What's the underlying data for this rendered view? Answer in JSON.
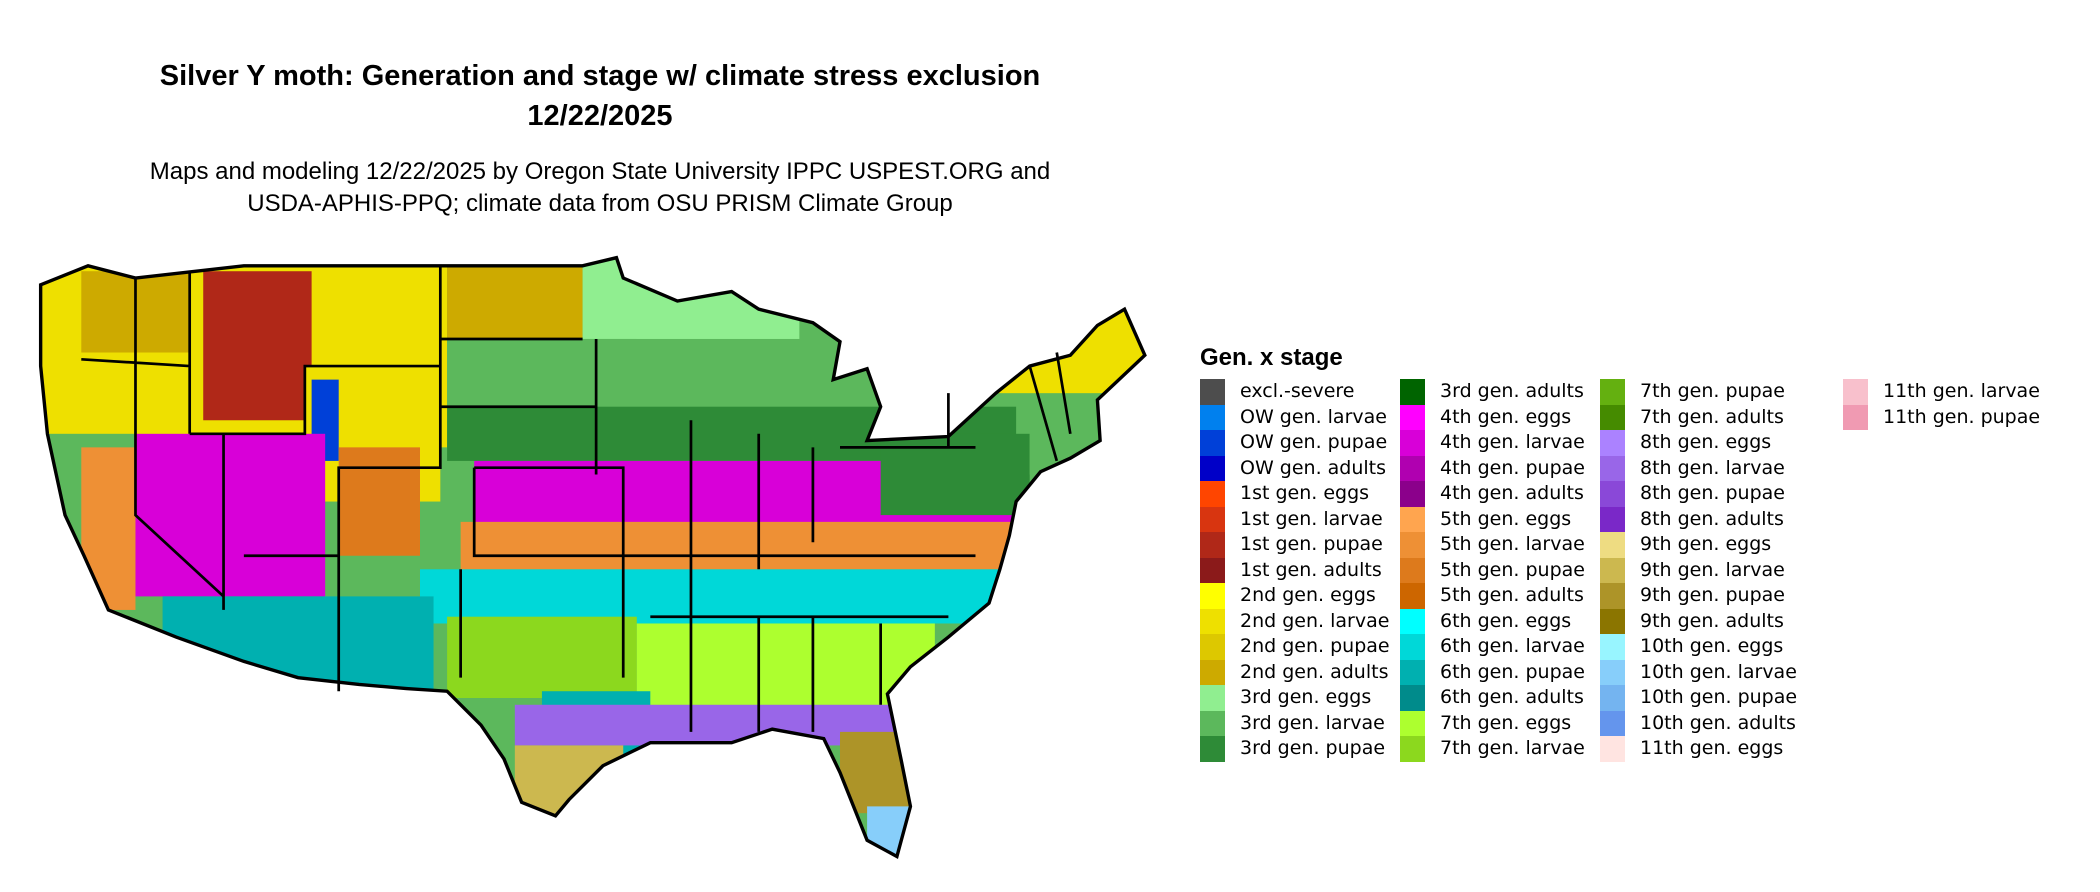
{
  "title": {
    "line1": "Silver Y moth: Generation and stage w/ climate stress exclusion",
    "line2": "12/22/2025"
  },
  "subtitle": {
    "line1": "Maps and modeling 12/22/2025 by Oregon State University IPPC USPEST.ORG and",
    "line2": "USDA-APHIS-PPQ; climate data from OSU PRISM Climate Group"
  },
  "legend": {
    "title": "Gen. x stage",
    "items": [
      {
        "label": "excl.-severe",
        "color": "#4d4d4d"
      },
      {
        "label": "OW gen. larvae",
        "color": "#0080ee"
      },
      {
        "label": "OW gen. pupae",
        "color": "#0040d8"
      },
      {
        "label": "OW gen. adults",
        "color": "#0000c8"
      },
      {
        "label": "1st gen. eggs",
        "color": "#ff4500"
      },
      {
        "label": "1st gen. larvae",
        "color": "#d83510"
      },
      {
        "label": "1st gen. pupae",
        "color": "#b02818"
      },
      {
        "label": "1st gen. adults",
        "color": "#8b1a1a"
      },
      {
        "label": "2nd gen. eggs",
        "color": "#ffff00"
      },
      {
        "label": "2nd gen. larvae",
        "color": "#eee000"
      },
      {
        "label": "2nd gen. pupae",
        "color": "#ddc800"
      },
      {
        "label": "2nd gen. adults",
        "color": "#cdaa00"
      },
      {
        "label": "3rd gen. eggs",
        "color": "#90ee90"
      },
      {
        "label": "3rd gen. larvae",
        "color": "#5cb85c"
      },
      {
        "label": "3rd gen. pupae",
        "color": "#2e8b37"
      },
      {
        "label": "3rd gen. adults",
        "color": "#006400"
      },
      {
        "label": "4th gen. eggs",
        "color": "#ff00ff"
      },
      {
        "label": "4th gen. larvae",
        "color": "#d800d8"
      },
      {
        "label": "4th gen. pupae",
        "color": "#b000b0"
      },
      {
        "label": "4th gen. adults",
        "color": "#8b008b"
      },
      {
        "label": "5th gen. eggs",
        "color": "#ffa54f"
      },
      {
        "label": "5th gen. larvae",
        "color": "#ee9035"
      },
      {
        "label": "5th gen. pupae",
        "color": "#dd7a1c"
      },
      {
        "label": "5th gen. adults",
        "color": "#cd6600"
      },
      {
        "label": "6th gen. eggs",
        "color": "#00ffff"
      },
      {
        "label": "6th gen. larvae",
        "color": "#00d8d8"
      },
      {
        "label": "6th gen. pupae",
        "color": "#00b0b0"
      },
      {
        "label": "6th gen. adults",
        "color": "#008b8b"
      },
      {
        "label": "7th gen. eggs",
        "color": "#adff2f"
      },
      {
        "label": "7th gen. larvae",
        "color": "#8cd81e"
      },
      {
        "label": "7th gen. pupae",
        "color": "#64b010"
      },
      {
        "label": "7th gen. adults",
        "color": "#458b00"
      },
      {
        "label": "8th gen. eggs",
        "color": "#ab82ff"
      },
      {
        "label": "8th gen. larvae",
        "color": "#9966e8"
      },
      {
        "label": "8th gen. pupae",
        "color": "#8a48d8"
      },
      {
        "label": "8th gen. adults",
        "color": "#7a28c8"
      },
      {
        "label": "9th gen. eggs",
        "color": "#eedc82"
      },
      {
        "label": "9th gen. larvae",
        "color": "#ccb84f"
      },
      {
        "label": "9th gen. pupae",
        "color": "#ad9428"
      },
      {
        "label": "9th gen. adults",
        "color": "#8b7500"
      },
      {
        "label": "10th gen. eggs",
        "color": "#98f5ff"
      },
      {
        "label": "10th gen. larvae",
        "color": "#87cefa"
      },
      {
        "label": "10th gen. pupae",
        "color": "#74b4f0"
      },
      {
        "label": "10th gen. adults",
        "color": "#6495ed"
      },
      {
        "label": "11th gen. eggs",
        "color": "#ffe4e1"
      },
      {
        "label": "11th gen. larvae",
        "color": "#f8c0cc"
      },
      {
        "label": "11th gen. pupae",
        "color": "#f09ab2"
      }
    ]
  }
}
